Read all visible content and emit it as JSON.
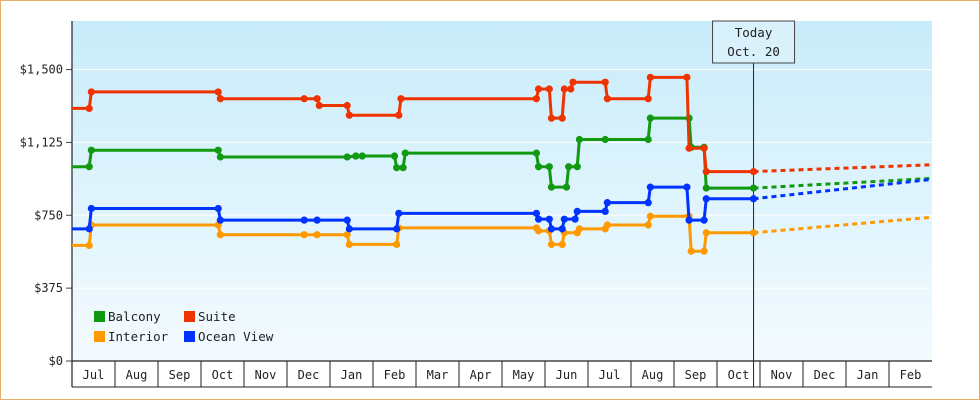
{
  "chart_data": {
    "type": "line",
    "title": "",
    "xlabel": "",
    "ylabel": "",
    "ylim": [
      0,
      1750
    ],
    "y_ticks": [
      {
        "value": 0,
        "label": "$0"
      },
      {
        "value": 375,
        "label": "$375"
      },
      {
        "value": 750,
        "label": "$750"
      },
      {
        "value": 1125,
        "label": "$1,125"
      },
      {
        "value": 1500,
        "label": "$1,500"
      }
    ],
    "month_labels": [
      "Jul",
      "Aug",
      "Sep",
      "Oct",
      "Nov",
      "Dec",
      "Jan",
      "Feb",
      "Mar",
      "Apr",
      "May",
      "Jun",
      "Jul",
      "Aug",
      "Sep",
      "Oct",
      "Nov",
      "Dec",
      "Jan",
      "Feb"
    ],
    "x_range_months": [
      -0.4,
      19.6
    ],
    "today": {
      "line1": "Today",
      "line2": "Oct. 20",
      "x": 15.45
    },
    "grid": true,
    "legend_position": "bottom-left",
    "series": [
      {
        "name": "Balcony",
        "color": "#119911",
        "points": [
          [
            -0.4,
            1000
          ],
          [
            0.0,
            1000
          ],
          [
            0.05,
            1085
          ],
          [
            3.0,
            1085
          ],
          [
            3.05,
            1050
          ],
          [
            6.0,
            1050
          ],
          [
            6.2,
            1055
          ],
          [
            6.35,
            1055
          ],
          [
            7.1,
            1055
          ],
          [
            7.15,
            995
          ],
          [
            7.3,
            995
          ],
          [
            7.35,
            1070
          ],
          [
            10.4,
            1070
          ],
          [
            10.45,
            1000
          ],
          [
            10.7,
            1000
          ],
          [
            10.75,
            895
          ],
          [
            11.1,
            895
          ],
          [
            11.15,
            1000
          ],
          [
            11.35,
            1000
          ],
          [
            11.4,
            1140
          ],
          [
            12.0,
            1140
          ],
          [
            13.0,
            1140
          ],
          [
            13.05,
            1250
          ],
          [
            13.95,
            1250
          ],
          [
            14.0,
            1100
          ],
          [
            14.3,
            1100
          ],
          [
            14.35,
            890
          ],
          [
            15.45,
            890
          ]
        ],
        "forecast": [
          [
            15.45,
            890
          ],
          [
            19.6,
            940
          ]
        ]
      },
      {
        "name": "Suite",
        "color": "#ee3300",
        "points": [
          [
            -0.4,
            1300
          ],
          [
            0.0,
            1300
          ],
          [
            0.05,
            1385
          ],
          [
            3.0,
            1385
          ],
          [
            3.05,
            1350
          ],
          [
            5.0,
            1350
          ],
          [
            5.3,
            1350
          ],
          [
            5.35,
            1315
          ],
          [
            6.0,
            1315
          ],
          [
            6.05,
            1265
          ],
          [
            7.2,
            1265
          ],
          [
            7.25,
            1350
          ],
          [
            10.4,
            1350
          ],
          [
            10.45,
            1400
          ],
          [
            10.7,
            1400
          ],
          [
            10.75,
            1250
          ],
          [
            11.0,
            1250
          ],
          [
            11.05,
            1400
          ],
          [
            11.2,
            1400
          ],
          [
            11.25,
            1435
          ],
          [
            12.0,
            1435
          ],
          [
            12.05,
            1350
          ],
          [
            13.0,
            1350
          ],
          [
            13.05,
            1460
          ],
          [
            13.9,
            1460
          ],
          [
            13.95,
            1095
          ],
          [
            14.3,
            1095
          ],
          [
            14.35,
            975
          ],
          [
            15.45,
            975
          ]
        ],
        "forecast": [
          [
            15.45,
            975
          ],
          [
            19.6,
            1010
          ]
        ]
      },
      {
        "name": "Interior",
        "color": "#ff9900",
        "points": [
          [
            -0.4,
            595
          ],
          [
            0.0,
            595
          ],
          [
            0.05,
            700
          ],
          [
            3.0,
            700
          ],
          [
            3.05,
            650
          ],
          [
            5.0,
            650
          ],
          [
            5.3,
            650
          ],
          [
            6.0,
            650
          ],
          [
            6.05,
            600
          ],
          [
            7.15,
            600
          ],
          [
            7.2,
            685
          ],
          [
            10.4,
            685
          ],
          [
            10.45,
            670
          ],
          [
            10.7,
            670
          ],
          [
            10.75,
            600
          ],
          [
            11.0,
            600
          ],
          [
            11.05,
            660
          ],
          [
            11.35,
            660
          ],
          [
            11.4,
            680
          ],
          [
            12.0,
            680
          ],
          [
            12.05,
            700
          ],
          [
            13.0,
            700
          ],
          [
            13.05,
            745
          ],
          [
            13.95,
            745
          ],
          [
            14.0,
            565
          ],
          [
            14.3,
            565
          ],
          [
            14.35,
            660
          ],
          [
            15.45,
            660
          ]
        ],
        "forecast": [
          [
            15.45,
            660
          ],
          [
            19.6,
            740
          ]
        ]
      },
      {
        "name": "Ocean View",
        "color": "#0033ff",
        "points": [
          [
            -0.4,
            680
          ],
          [
            0.0,
            680
          ],
          [
            0.05,
            785
          ],
          [
            3.0,
            785
          ],
          [
            3.05,
            725
          ],
          [
            5.0,
            725
          ],
          [
            5.3,
            725
          ],
          [
            6.0,
            725
          ],
          [
            6.05,
            680
          ],
          [
            7.15,
            680
          ],
          [
            7.2,
            760
          ],
          [
            10.4,
            760
          ],
          [
            10.45,
            730
          ],
          [
            10.7,
            730
          ],
          [
            10.75,
            680
          ],
          [
            11.0,
            680
          ],
          [
            11.05,
            730
          ],
          [
            11.3,
            730
          ],
          [
            11.35,
            770
          ],
          [
            12.0,
            770
          ],
          [
            12.05,
            815
          ],
          [
            13.0,
            815
          ],
          [
            13.05,
            895
          ],
          [
            13.9,
            895
          ],
          [
            13.95,
            725
          ],
          [
            14.3,
            725
          ],
          [
            14.35,
            835
          ],
          [
            15.45,
            835
          ]
        ],
        "forecast": [
          [
            15.45,
            835
          ],
          [
            19.6,
            935
          ]
        ]
      }
    ],
    "legend": [
      {
        "name": "Balcony",
        "color": "#119911"
      },
      {
        "name": "Suite",
        "color": "#ee3300"
      },
      {
        "name": "Interior",
        "color": "#ff9900"
      },
      {
        "name": "Ocean View",
        "color": "#0033ff"
      }
    ]
  }
}
